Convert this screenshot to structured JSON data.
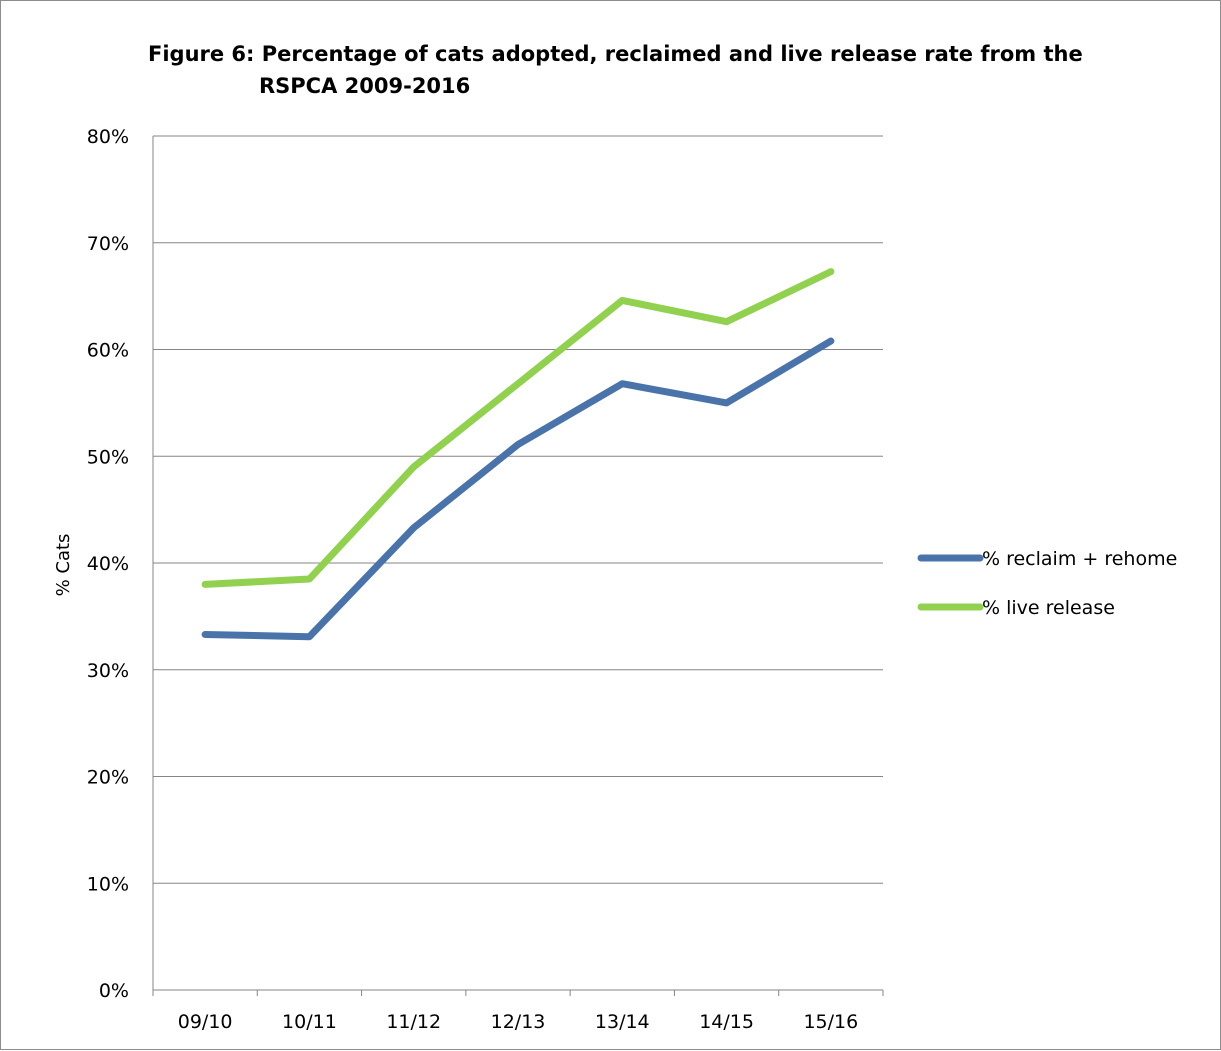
{
  "chart_data": {
    "type": "line",
    "title_line1": "Figure 6: Percentage of cats adopted, reclaimed and live release rate from the",
    "title_line2": "RSPCA 2009-2016",
    "ylabel": "% Cats",
    "xlabel": "",
    "categories": [
      "09/10",
      "10/11",
      "11/12",
      "12/13",
      "13/14",
      "14/15",
      "15/16"
    ],
    "ylim": [
      0,
      80
    ],
    "yticks": [
      0,
      10,
      20,
      30,
      40,
      50,
      60,
      70,
      80
    ],
    "ytick_labels": [
      "0%",
      "10%",
      "20%",
      "30%",
      "40%",
      "50%",
      "60%",
      "70%",
      "80%"
    ],
    "grid": "horizontal",
    "legend_position": "right",
    "series": [
      {
        "name": "% reclaim + rehome",
        "color": "#4a73aa",
        "values": [
          33.3,
          33.1,
          43.3,
          51.1,
          56.8,
          55.0,
          60.8
        ]
      },
      {
        "name": "% live release",
        "color": "#92d050",
        "values": [
          38.0,
          38.5,
          49.0,
          56.8,
          64.6,
          62.6,
          67.3
        ]
      }
    ]
  }
}
